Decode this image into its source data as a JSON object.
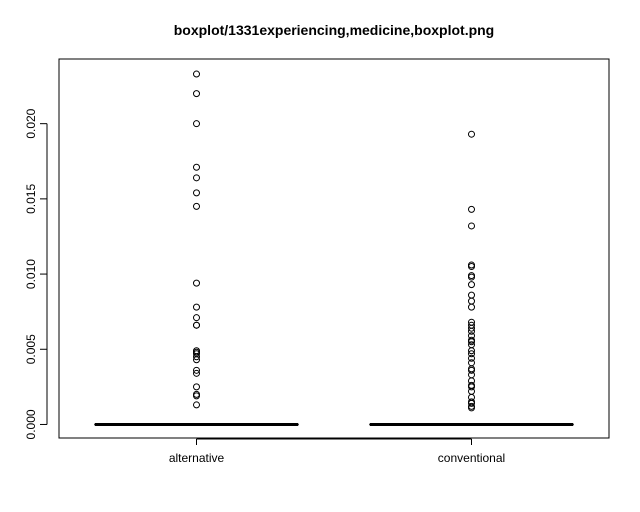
{
  "chart_data": {
    "type": "boxplot",
    "title": "boxplot/1331experiencing,medicine,boxplot.png",
    "xlabel": "",
    "ylabel": "",
    "categories": [
      "alternative",
      "conventional"
    ],
    "ylim": [
      -0.0009,
      0.0243
    ],
    "yticks": [
      0.0,
      0.005,
      0.01,
      0.015,
      0.02
    ],
    "ytick_labels": [
      "0.000",
      "0.005",
      "0.010",
      "0.015",
      "0.020"
    ],
    "grid": false,
    "legend": "none",
    "boxes": [
      {
        "category": "alternative",
        "median": 0.0,
        "q1": 0.0,
        "q3": 0.0,
        "whisker_low": 0.0,
        "whisker_high": 0.0,
        "outliers": [
          0.0233,
          0.022,
          0.02,
          0.0171,
          0.0164,
          0.0154,
          0.0145,
          0.0094,
          0.0078,
          0.0071,
          0.0066,
          0.0066,
          0.0049,
          0.0048,
          0.0047,
          0.0045,
          0.0043,
          0.0036,
          0.0034,
          0.0025,
          0.002,
          0.0019,
          0.0013
        ]
      },
      {
        "category": "conventional",
        "median": 0.0,
        "q1": 0.0,
        "q3": 0.0,
        "whisker_low": 0.0,
        "whisker_high": 0.0,
        "outliers": [
          0.0193,
          0.0143,
          0.0132,
          0.0106,
          0.0105,
          0.0099,
          0.0098,
          0.0093,
          0.0086,
          0.0082,
          0.0078,
          0.0068,
          0.0066,
          0.0064,
          0.0062,
          0.0059,
          0.0056,
          0.0055,
          0.0053,
          0.0049,
          0.0047,
          0.0044,
          0.0041,
          0.0037,
          0.0036,
          0.0033,
          0.0029,
          0.0026,
          0.0025,
          0.0022,
          0.0018,
          0.0015,
          0.0014,
          0.0012,
          0.0011
        ]
      }
    ]
  }
}
